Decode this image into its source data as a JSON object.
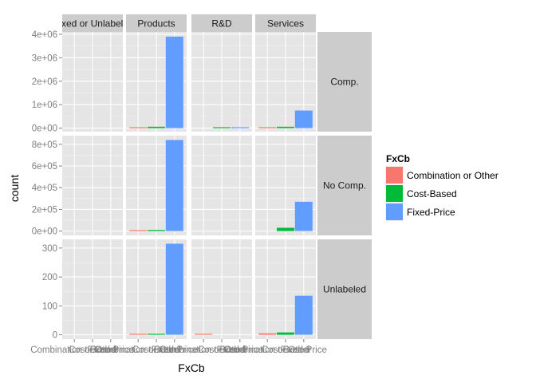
{
  "chart_data": {
    "type": "bar",
    "xlabel": "FxCb",
    "ylabel": "count",
    "categories": [
      "Combination or Other",
      "Cost-Based",
      "Fixed-Price"
    ],
    "column_facets": [
      "Mixed or Unlabeled",
      "Products",
      "R&D",
      "Services"
    ],
    "row_facets": [
      "Comp.",
      "No Comp.",
      "Unlabeled"
    ],
    "legend": {
      "title": "FxCb",
      "entries": [
        "Combination or Other",
        "Cost-Based",
        "Fixed-Price"
      ],
      "colors": [
        "#f8766d",
        "#00ba38",
        "#619cff"
      ],
      "placement": "right"
    },
    "rows": [
      {
        "facet": "Comp.",
        "ylim": [
          -150000,
          4100000
        ],
        "yticks": [
          0,
          1000000,
          2000000,
          3000000,
          4000000
        ],
        "yticklabels": [
          "0e+00",
          "1e+06",
          "2e+06",
          "3e+06",
          "4e+06"
        ],
        "panels": [
          [
            0,
            0,
            0
          ],
          [
            30000,
            60000,
            3900000
          ],
          [
            0,
            30000,
            20000
          ],
          [
            30000,
            60000,
            750000
          ]
        ]
      },
      {
        "facet": "No Comp.",
        "ylim": [
          -40000,
          880000
        ],
        "yticks": [
          0,
          200000,
          400000,
          600000,
          800000
        ],
        "yticklabels": [
          "0e+00",
          "2e+05",
          "4e+05",
          "6e+05",
          "8e+05"
        ],
        "panels": [
          [
            0,
            0,
            0
          ],
          [
            3000,
            10000,
            840000
          ],
          [
            0,
            0,
            0
          ],
          [
            0,
            30000,
            270000
          ]
        ]
      },
      {
        "facet": "Unlabeled",
        "ylim": [
          -15,
          330
        ],
        "yticks": [
          0,
          100,
          200,
          300
        ],
        "yticklabels": [
          "0",
          "100",
          "200",
          "300"
        ],
        "panels": [
          [
            0,
            0,
            0
          ],
          [
            2,
            3,
            315
          ],
          [
            2,
            0,
            0
          ],
          [
            5,
            8,
            135
          ]
        ]
      }
    ],
    "grid": true
  }
}
